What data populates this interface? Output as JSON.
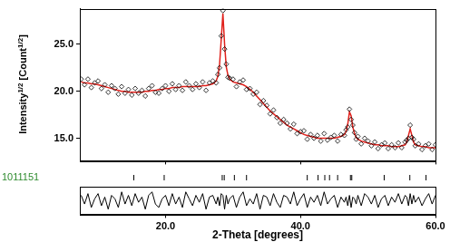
{
  "chart_data": [
    {
      "type": "scatter",
      "y_label": "Intensity1/2 [Count1/2]",
      "x": [
        7.5,
        8,
        8.5,
        9,
        9.5,
        10,
        10.5,
        11,
        11.5,
        12,
        12.5,
        13,
        13.5,
        14,
        14.5,
        15,
        15.5,
        16,
        16.5,
        17,
        17.5,
        18,
        18.5,
        19,
        19.5,
        20,
        20.5,
        21,
        21.5,
        22,
        22.5,
        23,
        23.5,
        24,
        24.5,
        25,
        25.5,
        26,
        26.5,
        27,
        27.5,
        27.75,
        28,
        28.25,
        28.5,
        28.75,
        29,
        29.25,
        29.5,
        30,
        30.5,
        31,
        31.5,
        32,
        32.5,
        33,
        33.5,
        34,
        34.5,
        35,
        35.5,
        36,
        36.5,
        37,
        37.5,
        38,
        38.5,
        39,
        39.5,
        40,
        40.5,
        41,
        41.5,
        42,
        42.5,
        43,
        43.5,
        44,
        44.5,
        45,
        45.5,
        46,
        46.5,
        46.75,
        47,
        47.25,
        47.5,
        47.75,
        48,
        48.25,
        48.5,
        49,
        49.5,
        50,
        50.5,
        51,
        51.5,
        52,
        52.5,
        53,
        53.5,
        54,
        54.5,
        55,
        55.5,
        55.75,
        56,
        56.25,
        56.5,
        56.75,
        57,
        57.5,
        58,
        58.5,
        59,
        59.5,
        60
      ],
      "series": [
        {
          "type": "scatter",
          "marker": "diamond",
          "color": "#000000",
          "values": [
            21.3,
            20.7,
            21.3,
            20.4,
            20.9,
            21.1,
            20.3,
            20.7,
            19.9,
            20.6,
            20.3,
            19.7,
            20.5,
            19.8,
            20.2,
            19.6,
            20.3,
            19.8,
            20.1,
            19.5,
            20.3,
            20.6,
            19.9,
            19.8,
            20.3,
            20.6,
            20.0,
            20.8,
            20.2,
            20.6,
            20.1,
            21.0,
            20.6,
            20.2,
            20.8,
            20.4,
            21.0,
            20.1,
            20.9,
            21.1,
            20.9,
            21.8,
            22.5,
            25.9,
            28.6,
            24.5,
            22.9,
            21.5,
            21.4,
            21.3,
            20.5,
            21.0,
            21.2,
            20.2,
            20.3,
            19.7,
            19.9,
            18.6,
            19.0,
            18.5,
            17.6,
            18.0,
            17.2,
            16.6,
            17.0,
            16.6,
            16.0,
            16.5,
            15.5,
            15.7,
            15.8,
            14.9,
            15.4,
            15.0,
            15.3,
            14.7,
            15.5,
            14.8,
            15.1,
            15.3,
            14.7,
            15.4,
            15.3,
            15.9,
            16.2,
            18.1,
            17.0,
            16.4,
            15.6,
            14.9,
            15.2,
            14.4,
            15.0,
            14.7,
            14.2,
            14.6,
            13.9,
            14.3,
            14.5,
            13.9,
            14.3,
            14.0,
            14.5,
            14.0,
            14.6,
            14.8,
            15.0,
            16.4,
            15.1,
            14.9,
            14.2,
            14.4,
            13.8,
            14.2,
            14.4,
            13.8,
            14.3
          ]
        },
        {
          "type": "line",
          "color": "#e0201b",
          "values": [
            21.0,
            20.9,
            20.9,
            20.8,
            20.8,
            20.7,
            20.6,
            20.5,
            20.4,
            20.3,
            20.2,
            20.1,
            20.0,
            20.0,
            19.9,
            19.9,
            19.9,
            19.9,
            19.9,
            20.0,
            20.0,
            20.1,
            20.1,
            20.2,
            20.2,
            20.3,
            20.3,
            20.4,
            20.4,
            20.4,
            20.5,
            20.5,
            20.5,
            20.5,
            20.5,
            20.5,
            20.6,
            20.6,
            20.7,
            20.8,
            21.1,
            21.6,
            22.8,
            25.5,
            28.3,
            25.0,
            22.6,
            21.7,
            21.3,
            21.0,
            20.9,
            20.8,
            20.7,
            20.5,
            20.2,
            19.9,
            19.5,
            19.1,
            18.7,
            18.3,
            17.9,
            17.6,
            17.3,
            17.0,
            16.7,
            16.4,
            16.2,
            16.0,
            15.8,
            15.6,
            15.4,
            15.3,
            15.2,
            15.1,
            15.0,
            15.0,
            15.0,
            15.0,
            15.0,
            15.0,
            15.1,
            15.2,
            15.4,
            15.7,
            16.5,
            17.8,
            17.4,
            16.2,
            15.5,
            15.1,
            14.9,
            14.7,
            14.6,
            14.5,
            14.4,
            14.3,
            14.3,
            14.2,
            14.2,
            14.2,
            14.1,
            14.1,
            14.1,
            14.2,
            14.3,
            14.6,
            15.3,
            16.0,
            15.3,
            14.6,
            14.3,
            14.2,
            14.1,
            14.1,
            14.0,
            14.0,
            14.0
          ]
        }
      ],
      "xlim": [
        7.3,
        60
      ],
      "xticks": [
        {
          "value": 20,
          "label": "20.0"
        },
        {
          "value": 40,
          "label": "40.0"
        },
        {
          "value": 60,
          "label": "60.0"
        }
      ],
      "ylim": [
        12.6,
        28.8
      ],
      "yticks": [
        {
          "value": 15,
          "label": "15.0"
        },
        {
          "value": 20,
          "label": "20.0"
        },
        {
          "value": 25,
          "label": "25.0"
        }
      ],
      "tick_labels": "y"
    },
    {
      "type": "scatter",
      "series": [
        {
          "name": "1011151",
          "marker": "line",
          "color": "#000000",
          "x": [
            15.3,
            19.8,
            28.4,
            28.7,
            30.2,
            32.0,
            41.0,
            42.6,
            43.6,
            44.3,
            45.5,
            47.4,
            47.6,
            52.4,
            56.2,
            58.6
          ]
        }
      ],
      "xlim": [
        7.3,
        60
      ],
      "tick_labels": false
    },
    {
      "type": "line",
      "x_label": "2-Theta [degrees]",
      "x": [
        7.5,
        8,
        8.5,
        9,
        9.5,
        10,
        10.5,
        11,
        11.5,
        12,
        12.5,
        13,
        13.5,
        14,
        14.5,
        15,
        15.5,
        16,
        16.5,
        17,
        17.5,
        18,
        18.5,
        19,
        19.5,
        20,
        20.5,
        21,
        21.5,
        22,
        22.5,
        23,
        23.5,
        24,
        24.5,
        25,
        25.5,
        26,
        26.5,
        27,
        27.5,
        27.75,
        28,
        28.25,
        28.5,
        28.75,
        29,
        29.25,
        29.5,
        30,
        30.5,
        31,
        31.5,
        32,
        32.5,
        33,
        33.5,
        34,
        34.5,
        35,
        35.5,
        36,
        36.5,
        37,
        37.5,
        38,
        38.5,
        39,
        39.5,
        40,
        40.5,
        41,
        41.5,
        42,
        42.5,
        43,
        43.5,
        44,
        44.5,
        45,
        45.5,
        46,
        46.5,
        46.75,
        47,
        47.25,
        47.5,
        47.75,
        48,
        48.25,
        48.5,
        49,
        49.5,
        50,
        50.5,
        51,
        51.5,
        52,
        52.5,
        53,
        53.5,
        54,
        54.5,
        55,
        55.5,
        55.75,
        56,
        56.25,
        56.5,
        56.75,
        57,
        57.5,
        58,
        58.5,
        59,
        59.5,
        60
      ],
      "values": [
        0.3,
        -0.2,
        0.4,
        -0.4,
        0.1,
        0.4,
        -0.3,
        0.2,
        -0.5,
        0.3,
        0.1,
        -0.4,
        0.5,
        -0.2,
        0.3,
        -0.3,
        0.4,
        -0.1,
        0.2,
        -0.5,
        0.3,
        0.5,
        -0.2,
        -0.4,
        0.1,
        0.3,
        -0.3,
        0.4,
        -0.2,
        0.2,
        -0.4,
        0.5,
        0.1,
        -0.3,
        0.3,
        -0.1,
        0.4,
        -0.5,
        0.2,
        0.3,
        -0.2,
        0.2,
        -0.3,
        0.4,
        0.3,
        -0.5,
        0.3,
        -0.2,
        0.1,
        0.3,
        -0.4,
        0.2,
        0.5,
        -0.3,
        0.1,
        -0.2,
        0.4,
        -0.5,
        0.3,
        0.2,
        -0.3,
        0.4,
        -0.1,
        -0.4,
        0.3,
        0.2,
        -0.2,
        0.5,
        -0.3,
        0.1,
        0.4,
        -0.4,
        0.2,
        -0.1,
        0.3,
        -0.3,
        0.5,
        -0.2,
        0.1,
        0.3,
        -0.4,
        0.2,
        -0.1,
        0.2,
        -0.3,
        0.3,
        -0.4,
        0.2,
        0.1,
        -0.2,
        0.3,
        -0.3,
        0.4,
        0.2,
        -0.2,
        0.3,
        -0.4,
        0.1,
        0.3,
        -0.3,
        0.2,
        -0.1,
        0.4,
        -0.2,
        0.3,
        0.2,
        -0.3,
        0.4,
        -0.2,
        0.3,
        -0.1,
        0.2,
        -0.3,
        0.1,
        0.4,
        -0.2,
        0.3
      ],
      "color": "#000000",
      "xlim": [
        7.3,
        60
      ],
      "xticks": [
        {
          "value": 20,
          "label": "20.0"
        },
        {
          "value": 40,
          "label": "40.0"
        },
        {
          "value": 60,
          "label": "60.0"
        }
      ],
      "ylim": [
        -0.8,
        0.8
      ],
      "tick_labels": "x"
    }
  ]
}
